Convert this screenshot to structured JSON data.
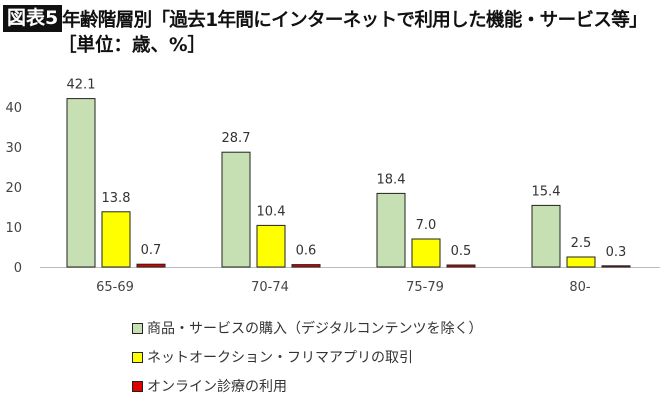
{
  "figure_label": "図表5",
  "title": "年齢階層別「過去1年間にインターネットで利用した機能・サービス等」",
  "subtitle": "［単位：歳、%］",
  "chart_data": {
    "type": "bar",
    "categories": [
      "65-69",
      "70-74",
      "75-79",
      "80-"
    ],
    "series": [
      {
        "name": "商品・サービスの購入（デジタルコンテンツを除く）",
        "color": "#c6e0b4",
        "values": [
          42.1,
          28.7,
          18.4,
          15.4
        ]
      },
      {
        "name": "ネットオークション・フリマアプリの取引",
        "color": "#ffff00",
        "values": [
          13.8,
          10.4,
          7.0,
          2.5
        ]
      },
      {
        "name": "オンライン診療の利用",
        "color": "#e00000",
        "values": [
          0.7,
          0.6,
          0.5,
          0.3
        ]
      }
    ],
    "ylim": [
      0,
      45
    ],
    "yticks": [
      0,
      10,
      20,
      30,
      40
    ],
    "grid": false,
    "legend": "bottom"
  }
}
